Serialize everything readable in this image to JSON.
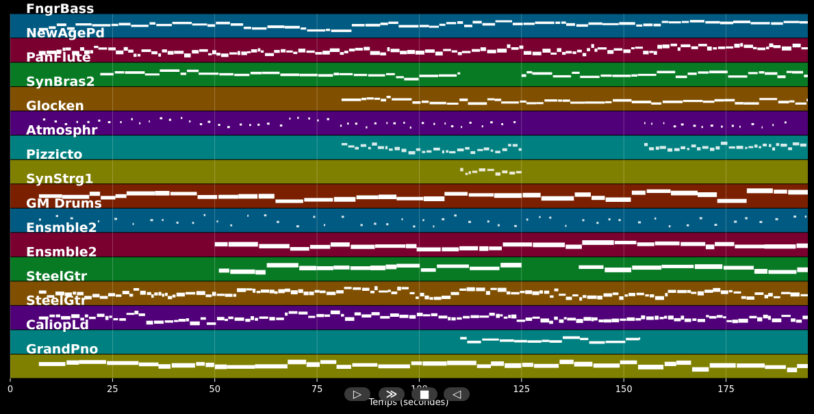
{
  "tracks": [
    {
      "name": "FngrBass",
      "color": "#005a82",
      "style": "melody"
    },
    {
      "name": "NewAgePd",
      "color": "#7a0030",
      "style": "dense"
    },
    {
      "name": "PanFlute",
      "color": "#087a24",
      "style": "melody",
      "segments": [
        [
          22,
          110
        ],
        [
          125,
          195
        ]
      ]
    },
    {
      "name": "SynBras2",
      "color": "#805000",
      "style": "melody",
      "segments": [
        [
          81,
          195
        ]
      ]
    },
    {
      "name": "Glocken",
      "color": "#500078",
      "style": "sparse",
      "segments": [
        [
          8,
          125
        ],
        [
          155,
          190
        ]
      ]
    },
    {
      "name": "Atmosphr",
      "color": "#008080",
      "style": "dashed",
      "segments": [
        [
          81,
          125
        ],
        [
          155,
          195
        ]
      ]
    },
    {
      "name": "Pizzicto",
      "color": "#808000",
      "style": "dashed",
      "segments": [
        [
          110,
          125
        ]
      ]
    },
    {
      "name": "SynStrg1",
      "color": "#7a2000",
      "style": "thick"
    },
    {
      "name": "GM Drums",
      "color": "#005a82",
      "style": "drums"
    },
    {
      "name": "Ensmble2",
      "color": "#7a0030",
      "style": "thick",
      "segments": [
        [
          50,
          195
        ]
      ]
    },
    {
      "name": "Ensmble2",
      "color": "#087a24",
      "style": "thick",
      "segments": [
        [
          51,
          125
        ],
        [
          139,
          195
        ]
      ]
    },
    {
      "name": "SteelGtr",
      "color": "#805000",
      "style": "dense"
    },
    {
      "name": "SteelGtr",
      "color": "#500078",
      "style": "dense"
    },
    {
      "name": "CaliopLd",
      "color": "#008080",
      "style": "melody",
      "segments": [
        [
          110,
          154
        ]
      ]
    },
    {
      "name": "GrandPno",
      "color": "#808000",
      "style": "thick"
    }
  ],
  "x_axis": {
    "ticks": [
      0,
      25,
      50,
      75,
      100,
      125,
      150,
      175
    ],
    "tick_labels": [
      "0",
      "25",
      "50",
      "75",
      "100",
      "125",
      "150",
      "175"
    ],
    "range": [
      0,
      195
    ],
    "label": "Temps (secondes)"
  },
  "transport": {
    "play_label": "▷",
    "forward_label": "≫",
    "stop_label": "■",
    "back_label": "◁"
  }
}
